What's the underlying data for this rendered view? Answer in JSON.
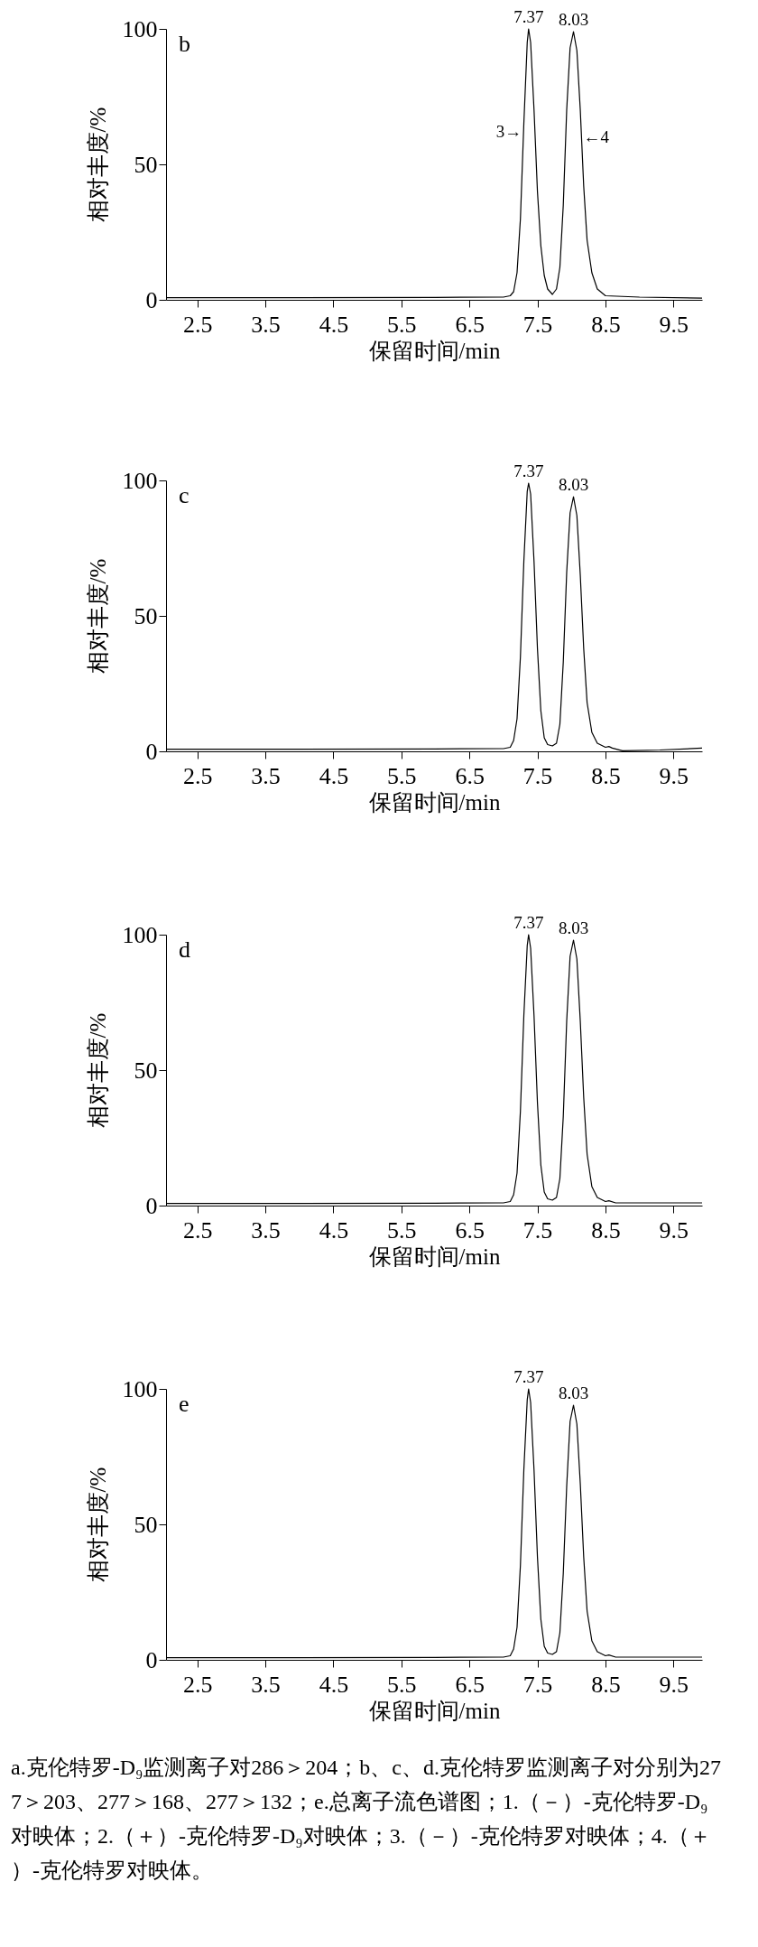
{
  "chart_data": [
    {
      "type": "line",
      "title": "b",
      "xlabel": "保留时间/min",
      "ylabel": "相对丰度/%",
      "xlim": [
        2.04,
        9.92
      ],
      "xticks": [
        2.5,
        3.5,
        4.5,
        5.5,
        6.5,
        7.5,
        8.5,
        9.5
      ],
      "ylim": [
        0,
        100
      ],
      "yticks": [
        0,
        50,
        100
      ],
      "grid": false,
      "marker": "none",
      "line_style": "solid",
      "x": [
        2.04,
        4.0,
        6.0,
        7.0,
        7.1,
        7.15,
        7.2,
        7.25,
        7.3,
        7.35,
        7.37,
        7.4,
        7.45,
        7.5,
        7.55,
        7.6,
        7.65,
        7.72,
        7.78,
        7.83,
        7.88,
        7.93,
        7.98,
        8.03,
        8.08,
        8.13,
        8.18,
        8.23,
        8.3,
        8.38,
        8.5,
        9.0,
        9.92
      ],
      "series": [
        {
          "color": "#000000",
          "values": [
            0.8,
            0.8,
            0.9,
            1.0,
            1.5,
            3,
            10,
            30,
            65,
            95,
            100,
            95,
            70,
            40,
            20,
            9,
            4,
            2,
            4,
            12,
            35,
            70,
            93,
            99,
            92,
            70,
            42,
            22,
            10,
            4,
            1.5,
            1.0,
            0.6
          ]
        }
      ],
      "annotations": [
        {
          "text": "7.37",
          "x": 7.37,
          "y": 100
        },
        {
          "text": "8.03",
          "x": 8.03,
          "y": 99
        },
        {
          "text": "3→",
          "x": 7.295,
          "y": 62
        },
        {
          "text": "←4",
          "x": 8.15,
          "y": 60
        }
      ]
    },
    {
      "type": "line",
      "title": "c",
      "xlabel": "保留时间/min",
      "ylabel": "相对丰度/%",
      "xlim": [
        2.04,
        9.92
      ],
      "xticks": [
        2.5,
        3.5,
        4.5,
        5.5,
        6.5,
        7.5,
        8.5,
        9.5
      ],
      "ylim": [
        0,
        100
      ],
      "yticks": [
        0,
        50,
        100
      ],
      "grid": false,
      "marker": "none",
      "line_style": "solid",
      "x": [
        2.04,
        4.0,
        6.0,
        7.0,
        7.1,
        7.15,
        7.2,
        7.25,
        7.3,
        7.35,
        7.37,
        7.4,
        7.45,
        7.5,
        7.55,
        7.6,
        7.65,
        7.72,
        7.78,
        7.83,
        7.88,
        7.93,
        7.98,
        8.03,
        8.08,
        8.13,
        8.18,
        8.23,
        8.3,
        8.38,
        8.5,
        8.55,
        8.6,
        8.75,
        9.3,
        9.92
      ],
      "series": [
        {
          "color": "#000000",
          "values": [
            0.8,
            0.8,
            0.9,
            1.0,
            1.5,
            4,
            12,
            35,
            70,
            96,
            99,
            95,
            70,
            38,
            15,
            5,
            2.5,
            2,
            3,
            10,
            33,
            66,
            88,
            94,
            87,
            65,
            38,
            18,
            7,
            3,
            1.5,
            1.8,
            1.2,
            0.2,
            0.5,
            1.2
          ]
        }
      ],
      "annotations": [
        {
          "text": "7.37",
          "x": 7.37,
          "y": 99
        },
        {
          "text": "8.03",
          "x": 8.03,
          "y": 94
        }
      ]
    },
    {
      "type": "line",
      "title": "d",
      "xlabel": "保留时间/min",
      "ylabel": "相对丰度/%",
      "xlim": [
        2.04,
        9.92
      ],
      "xticks": [
        2.5,
        3.5,
        4.5,
        5.5,
        6.5,
        7.5,
        8.5,
        9.5
      ],
      "ylim": [
        0,
        100
      ],
      "yticks": [
        0,
        50,
        100
      ],
      "grid": false,
      "marker": "none",
      "line_style": "solid",
      "x": [
        2.04,
        4.0,
        6.0,
        7.0,
        7.1,
        7.15,
        7.2,
        7.25,
        7.3,
        7.35,
        7.37,
        7.4,
        7.45,
        7.5,
        7.55,
        7.6,
        7.65,
        7.72,
        7.78,
        7.83,
        7.88,
        7.93,
        7.98,
        8.03,
        8.08,
        8.13,
        8.18,
        8.23,
        8.3,
        8.38,
        8.5,
        8.55,
        8.65,
        9.92
      ],
      "series": [
        {
          "color": "#000000",
          "values": [
            0.8,
            0.8,
            0.9,
            1.0,
            1.5,
            4,
            12,
            35,
            70,
            96,
            100,
            95,
            70,
            38,
            15,
            5,
            2.5,
            2,
            3,
            10,
            33,
            68,
            92,
            98,
            91,
            68,
            40,
            19,
            7,
            3,
            1.5,
            1.8,
            1.0,
            1.0
          ]
        }
      ],
      "annotations": [
        {
          "text": "7.37",
          "x": 7.37,
          "y": 100
        },
        {
          "text": "8.03",
          "x": 8.03,
          "y": 98
        }
      ]
    },
    {
      "type": "line",
      "title": "e",
      "xlabel": "保留时间/min",
      "ylabel": "相对丰度/%",
      "xlim": [
        2.04,
        9.92
      ],
      "xticks": [
        2.5,
        3.5,
        4.5,
        5.5,
        6.5,
        7.5,
        8.5,
        9.5
      ],
      "ylim": [
        0,
        100
      ],
      "yticks": [
        0,
        50,
        100
      ],
      "grid": false,
      "marker": "none",
      "line_style": "solid",
      "x": [
        2.04,
        4.0,
        6.0,
        7.0,
        7.1,
        7.15,
        7.2,
        7.25,
        7.3,
        7.35,
        7.37,
        7.4,
        7.45,
        7.5,
        7.55,
        7.6,
        7.65,
        7.72,
        7.78,
        7.83,
        7.88,
        7.93,
        7.98,
        8.03,
        8.08,
        8.13,
        8.18,
        8.23,
        8.3,
        8.38,
        8.5,
        8.55,
        8.65,
        9.92
      ],
      "series": [
        {
          "color": "#000000",
          "values": [
            0.8,
            0.8,
            0.9,
            1.0,
            1.5,
            4,
            12,
            35,
            70,
            96,
            100,
            95,
            70,
            38,
            15,
            5,
            2.5,
            2,
            3,
            10,
            32,
            64,
            88,
            94,
            87,
            65,
            38,
            18,
            7,
            3,
            1.5,
            1.8,
            1.0,
            1.0
          ]
        }
      ],
      "annotations": [
        {
          "text": "7.37",
          "x": 7.37,
          "y": 100
        },
        {
          "text": "8.03",
          "x": 8.03,
          "y": 94
        },
        "a.克伦特罗-D₉监测离子对286＞204；b、c、d.克伦特罗监测离子对分别为277＞203、277＞168、277＞132；e.总离子流色谱图；1.（－）-克伦特罗-D₉对映体；2.（＋）-克伦特罗-D₉对映体；3.（－）-克伦特罗对映体；4.（＋）-克伦特罗对映体。"
      ]
    }
  ]
}
